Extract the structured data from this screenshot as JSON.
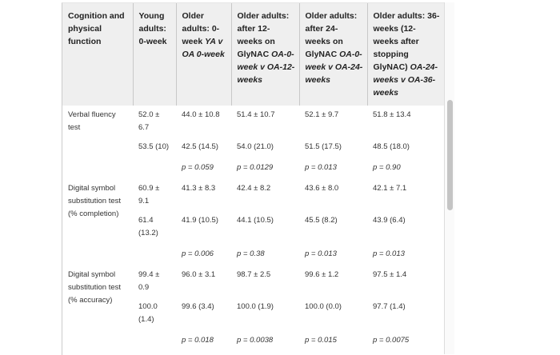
{
  "table": {
    "headers": [
      {
        "text": "Cognition and physical function",
        "italic": ""
      },
      {
        "text": "Young adults: 0-week",
        "italic": ""
      },
      {
        "text": "Older adults: 0-week ",
        "italic": "YA v OA 0-week"
      },
      {
        "text": "Older adults: after 12-weeks on GlyNAC ",
        "italic": "OA-0-week v OA-12-weeks"
      },
      {
        "text": "Older adults: after 24-weeks on GlyNAC ",
        "italic": "OA-0-week v OA-24-weeks"
      },
      {
        "text": "Older adults: 36-weeks (12-weeks after stopping GlyNAC) ",
        "italic": "OA-24-weeks v OA-36-weeks"
      }
    ],
    "rows": [
      {
        "label": "Verbal fluency test",
        "mean_sd": [
          "52.0 ± 6.7",
          "44.0 ± 10.8",
          "51.4 ± 10.7",
          "52.1 ± 9.7",
          "51.8 ± 13.4"
        ],
        "median_iqr": [
          "53.5 (10)",
          "42.5 (14.5)",
          "54.0 (21.0)",
          "51.5 (17.5)",
          "48.5 (18.0)"
        ],
        "p_values": [
          "p = 0.059",
          "p = 0.0129",
          "p = 0.013",
          "p = 0.90"
        ]
      },
      {
        "label": "Digital symbol substitution test (% completion)",
        "mean_sd": [
          "60.9 ± 9.1",
          "41.3 ± 8.3",
          "42.4 ± 8.2",
          "43.6 ± 8.0",
          "42.1 ± 7.1"
        ],
        "median_iqr": [
          "61.4 (13.2)",
          "41.9 (10.5)",
          "44.1 (10.5)",
          "45.5 (8.2)",
          "43.9 (6.4)"
        ],
        "p_values": [
          "p = 0.006",
          "p = 0.38",
          "p = 0.013",
          "p = 0.013"
        ]
      },
      {
        "label": "Digital symbol substitution test (% accuracy)",
        "mean_sd": [
          "99.4 ± 0.9",
          "96.0 ± 3.1",
          "98.7 ± 2.5",
          "99.6 ± 1.2",
          "97.5 ± 1.4"
        ],
        "median_iqr": [
          "100.0 (1.4)",
          "99.6 (3.4)",
          "100.0 (1.9)",
          "100.0 (0.0)",
          "97.7 (1.4)"
        ],
        "p_values": [
          "p = 0.018",
          "p = 0.0038",
          "p = 0.015",
          "p = 0.0075"
        ]
      }
    ]
  }
}
